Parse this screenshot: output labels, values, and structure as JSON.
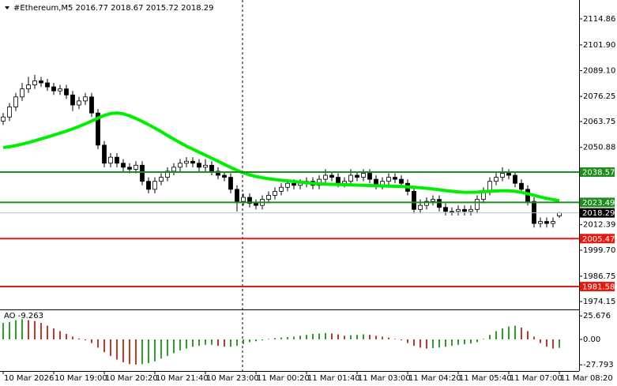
{
  "chart_data": [
    {
      "type": "candlestick",
      "title": "#Ethereum,M5  2016.77 2018.67 2015.72 2018.29",
      "categories": [
        "10 Mar 2026",
        null,
        null,
        null,
        null,
        null,
        null,
        null,
        "10 Mar 19:00",
        null,
        null,
        null,
        null,
        null,
        null,
        null,
        "10 Mar 20:20",
        null,
        null,
        null,
        null,
        null,
        null,
        null,
        "10 Mar 21:40",
        null,
        null,
        null,
        null,
        null,
        null,
        null,
        "10 Mar 23:00",
        null,
        null,
        null,
        null,
        null,
        null,
        null,
        "11 Mar 00:20",
        null,
        null,
        null,
        null,
        null,
        null,
        null,
        "11 Mar 01:40",
        null,
        null,
        null,
        null,
        null,
        null,
        null,
        "11 Mar 03:00",
        null,
        null,
        null,
        null,
        null,
        null,
        null,
        "11 Mar 04:20",
        null,
        null,
        null,
        null,
        null,
        null,
        null,
        "11 Mar 05:40",
        null,
        null,
        null,
        null,
        null,
        null,
        null,
        "11 Mar 07:00",
        null,
        null,
        null,
        null,
        null,
        null,
        null,
        "11 Mar 08:20"
      ],
      "open": [
        2064,
        2066,
        2071,
        2076,
        2080,
        2082,
        2084,
        2083,
        2081,
        2079,
        2080,
        2077,
        2072,
        2074,
        2076,
        2068,
        2052,
        2043,
        2046,
        2043,
        2041,
        2040,
        2042,
        2034,
        2030,
        2034,
        2036,
        2039,
        2041,
        2043,
        2044,
        2043,
        2041,
        2042,
        2039,
        2037,
        2036,
        2030,
        2024,
        2026,
        2023,
        2022,
        2025,
        2027,
        2029,
        2031,
        2033,
        2032,
        2033,
        2034,
        2032,
        2035,
        2037,
        2036,
        2033,
        2034,
        2037,
        2036,
        2038,
        2035,
        2032,
        2034,
        2036,
        2035,
        2033,
        2029,
        2020,
        2022,
        2024,
        2025,
        2021,
        2019,
        2019,
        2020,
        2019,
        2020,
        2025,
        2029,
        2034,
        2036,
        2038,
        2037,
        2033,
        2030,
        2024,
        2013,
        2014,
        2013,
        2016.77
      ],
      "high": [
        2068,
        2073,
        2078,
        2083,
        2086,
        2087,
        2086,
        2085,
        2083,
        2082,
        2082,
        2079,
        2076,
        2078,
        2078,
        2070,
        2054,
        2048,
        2048,
        2045,
        2043,
        2044,
        2044,
        2036,
        2036,
        2038,
        2041,
        2043,
        2045,
        2046,
        2046,
        2045,
        2045,
        2044,
        2041,
        2039,
        2038,
        2032,
        2028,
        2028,
        2025,
        2027,
        2029,
        2031,
        2033,
        2035,
        2035,
        2035,
        2036,
        2036,
        2037,
        2040,
        2039,
        2038,
        2036,
        2040,
        2039,
        2040,
        2040,
        2037,
        2036,
        2038,
        2038,
        2037,
        2035,
        2031,
        2025,
        2026,
        2027,
        2027,
        2023,
        2021,
        2022,
        2022,
        2022,
        2027,
        2031,
        2036,
        2039,
        2041,
        2040,
        2039,
        2035,
        2032,
        2026,
        2016,
        2016,
        2016,
        2018.67
      ],
      "low": [
        2062,
        2064,
        2069,
        2074,
        2078,
        2080,
        2081,
        2079,
        2077,
        2077,
        2075,
        2069,
        2070,
        2072,
        2066,
        2050,
        2041,
        2041,
        2041,
        2039,
        2038,
        2038,
        2032,
        2028,
        2028,
        2032,
        2034,
        2037,
        2039,
        2041,
        2041,
        2039,
        2039,
        2037,
        2035,
        2034,
        2028,
        2019,
        2022,
        2021,
        2020,
        2020,
        2023,
        2025,
        2027,
        2029,
        2030,
        2030,
        2031,
        2030,
        2030,
        2033,
        2034,
        2031,
        2031,
        2032,
        2034,
        2034,
        2033,
        2030,
        2030,
        2032,
        2033,
        2031,
        2027,
        2018,
        2018,
        2020,
        2022,
        2019,
        2017,
        2017,
        2017,
        2017,
        2017,
        2018,
        2023,
        2027,
        2032,
        2034,
        2035,
        2031,
        2028,
        2022,
        2011,
        2011,
        2011,
        2011,
        2015.72
      ],
      "close": [
        2066,
        2071,
        2076,
        2080,
        2082,
        2084,
        2083,
        2081,
        2079,
        2080,
        2077,
        2072,
        2074,
        2076,
        2068,
        2052,
        2043,
        2046,
        2043,
        2041,
        2040,
        2042,
        2034,
        2030,
        2034,
        2036,
        2039,
        2041,
        2043,
        2044,
        2043,
        2041,
        2042,
        2039,
        2037,
        2036,
        2030,
        2024,
        2026,
        2023,
        2022,
        2025,
        2027,
        2029,
        2031,
        2033,
        2032,
        2033,
        2034,
        2032,
        2035,
        2037,
        2036,
        2033,
        2034,
        2037,
        2036,
        2038,
        2035,
        2032,
        2034,
        2036,
        2035,
        2033,
        2029,
        2020,
        2022,
        2024,
        2025,
        2021,
        2019,
        2019,
        2020,
        2019,
        2020,
        2025,
        2029,
        2034,
        2036,
        2038,
        2037,
        2033,
        2030,
        2024,
        2013,
        2014,
        2013,
        2014,
        2018.29
      ],
      "series": [
        {
          "color": "#00ee00",
          "values": [
            2050.8,
            2051.2,
            2051.8,
            2052.5,
            2053.3,
            2054.2,
            2055.1,
            2056.0,
            2057.0,
            2058.0,
            2059.0,
            2060.1,
            2061.3,
            2062.6,
            2064.0,
            2065.5,
            2066.8,
            2067.7,
            2068.0,
            2067.6,
            2066.6,
            2065.3,
            2063.8,
            2062.2,
            2060.5,
            2058.7,
            2056.8,
            2055.0,
            2053.2,
            2051.5,
            2050.0,
            2048.5,
            2047.0,
            2045.5,
            2044.0,
            2042.4,
            2040.9,
            2039.5,
            2038.2,
            2037.2,
            2036.4,
            2035.8,
            2035.3,
            2034.9,
            2034.5,
            2034.2,
            2033.9,
            2033.6,
            2033.3,
            2033.0,
            2032.8,
            2032.6,
            2032.5,
            2032.4,
            2032.3,
            2032.2,
            2032.1,
            2032.0,
            2031.9,
            2031.8,
            2031.7,
            2031.6,
            2031.5,
            2031.4,
            2031.2,
            2031.0,
            2030.8,
            2030.5,
            2030.2,
            2029.8,
            2029.4,
            2029.0,
            2028.7,
            2028.5,
            2028.5,
            2028.6,
            2028.8,
            2029.0,
            2029.2,
            2029.3,
            2029.3,
            2029.0,
            2028.5,
            2027.8,
            2027.0,
            2026.2,
            2025.5,
            2024.9,
            2024.4
          ]
        }
      ],
      "up_color": "#ffffff",
      "down_color": "#000000",
      "ylim": [
        1970.2,
        2122.3
      ],
      "yticks": [
        2114.86,
        {
          "value": 2101.9,
          "label": "2101.90"
        },
        {
          "value": 2089.1,
          "label": "2089.10"
        },
        2076.25,
        2063.75,
        2050.88,
        2012.39,
        {
          "value": 1999.7,
          "label": "1999.70"
        },
        1986.75,
        1974.15
      ],
      "levels": [
        {
          "value": 2038.57,
          "color": "#1e8c1e"
        },
        {
          "value": 2023.49,
          "color": "#1e8c1e"
        },
        {
          "value": 2018.29,
          "color": "#000000"
        },
        {
          "value": 2005.47,
          "color": "#e8190f"
        },
        {
          "value": 1981.58,
          "color": "#e8190f"
        }
      ]
    },
    {
      "type": "histogram",
      "title": "AO -9.263",
      "values": [
        18,
        19,
        21,
        22,
        21,
        20,
        18,
        15,
        12,
        9,
        6,
        3,
        1,
        -1,
        -4,
        -9,
        -14,
        -18,
        -22,
        -25,
        -27,
        -27.5,
        -27,
        -26,
        -24,
        -21,
        -18,
        -15,
        -12,
        -10,
        -8,
        -7,
        -6,
        -6,
        -7,
        -8,
        -8,
        -7,
        -5,
        -3,
        -2,
        -1,
        0.5,
        1.5,
        2,
        2.5,
        3,
        4,
        5,
        6,
        6.5,
        7,
        6.5,
        5.5,
        4,
        4.5,
        5,
        5.5,
        5,
        4,
        3,
        2,
        0.5,
        -1,
        -4,
        -7,
        -9,
        -10,
        -9.5,
        -9,
        -8,
        -7,
        -6,
        -5.5,
        -4.5,
        -3,
        0.5,
        5,
        9,
        12,
        14,
        15,
        13,
        9,
        3,
        -4,
        -8,
        -10,
        -9.263
      ],
      "up_color": "#2ea02e",
      "down_color": "#c0392b",
      "ylim": [
        -32.8,
        31
      ],
      "yticks": [
        25.676,
        {
          "value": 0,
          "label": "0.00"
        },
        -27.793
      ]
    }
  ]
}
